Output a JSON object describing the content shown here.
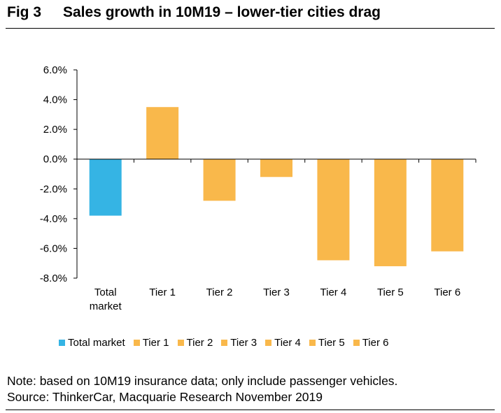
{
  "figure": {
    "number": "Fig 3",
    "title": "Sales growth in 10M19 – lower-tier cities drag"
  },
  "chart_data": {
    "type": "bar",
    "categories": [
      [
        "Total",
        "market"
      ],
      [
        "Tier 1"
      ],
      [
        "Tier 2"
      ],
      [
        "Tier 3"
      ],
      [
        "Tier 4"
      ],
      [
        "Tier 5"
      ],
      [
        "Tier 6"
      ]
    ],
    "values": [
      -3.8,
      3.5,
      -2.8,
      -1.2,
      -6.8,
      -7.2,
      -6.2
    ],
    "colors": [
      "#35b4e4",
      "#f9b84b",
      "#f9b84b",
      "#f9b84b",
      "#f9b84b",
      "#f9b84b",
      "#f9b84b"
    ],
    "ylim": [
      -8,
      6
    ],
    "yticks": [
      6,
      4,
      2,
      0,
      -2,
      -4,
      -6,
      -8
    ],
    "ytick_labels": [
      "6.0%",
      "4.0%",
      "2.0%",
      "0.0%",
      "-2.0%",
      "-4.0%",
      "-6.0%",
      "-8.0%"
    ],
    "grid": false,
    "legend_position": "bottom",
    "legend": [
      "Total market",
      "Tier 1",
      "Tier 2",
      "Tier 3",
      "Tier 4",
      "Tier 5",
      "Tier 6"
    ],
    "xlabel": "",
    "ylabel": ""
  },
  "notes": {
    "line1": "Note: based on 10M19 insurance data; only include passenger vehicles.",
    "line2": "Source: ThinkerCar, Macquarie Research November 2019"
  }
}
